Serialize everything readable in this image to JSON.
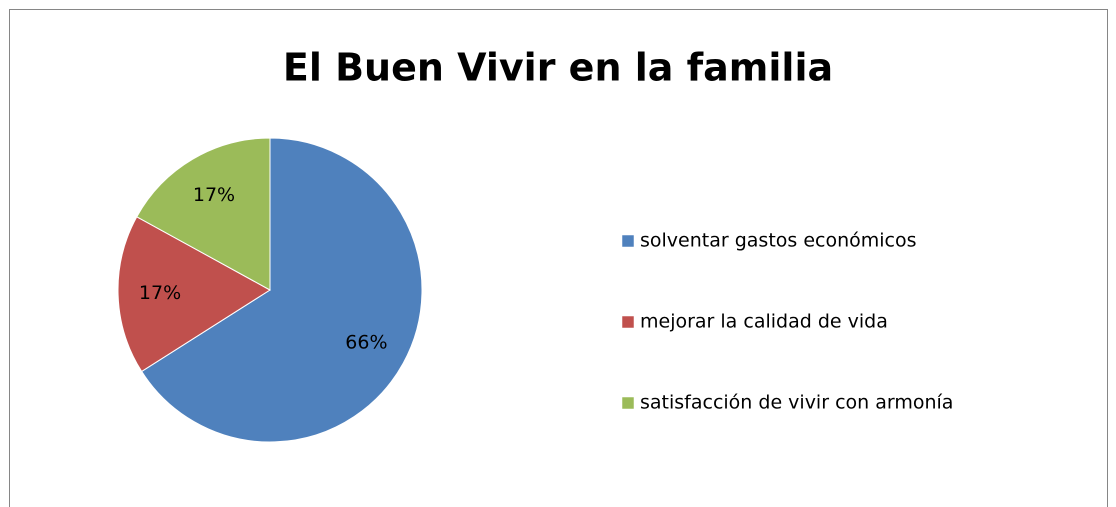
{
  "chart_data": {
    "type": "pie",
    "title": "El Buen Vivir en la familia",
    "categories": [
      "solventar gastos económicos",
      "mejorar la calidad de vida",
      "satisfacción de vivir con armonía"
    ],
    "values": [
      66,
      17,
      17
    ],
    "value_labels": [
      "66%",
      "17%",
      "17%"
    ],
    "colors": [
      "#4f81bd",
      "#c0504d",
      "#9bbb59"
    ],
    "legend": "right"
  }
}
